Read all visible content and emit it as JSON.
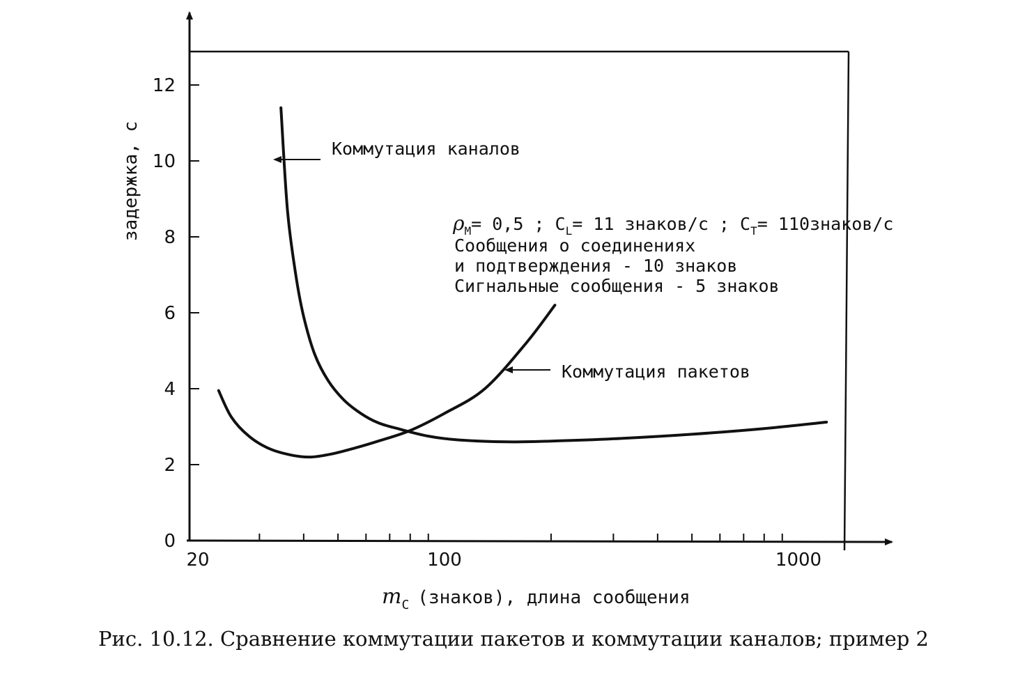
{
  "chart_data": {
    "type": "line",
    "xscale": "log",
    "xlim": [
      20,
      1300
    ],
    "ylim": [
      0,
      12.6
    ],
    "x_ticks": [
      20,
      100,
      1000
    ],
    "x_tick_labels": [
      "20",
      "100",
      "1000"
    ],
    "y_ticks": [
      0,
      2,
      4,
      6,
      8,
      10,
      12
    ],
    "y_tick_labels": [
      "0",
      "2",
      "4",
      "6",
      "8",
      "10",
      "12"
    ],
    "xlabel": {
      "sym": "m",
      "sub": "C",
      "text": "(знаков), длина сообщения"
    },
    "ylabel": "задержка, с",
    "series": [
      {
        "name": "Коммутация каналов",
        "x": [
          34.5,
          36,
          38,
          40,
          43,
          47,
          52,
          58,
          65,
          75,
          90,
          110,
          150,
          200,
          300,
          500,
          800,
          1200
        ],
        "y": [
          11.4,
          8.7,
          7.0,
          5.9,
          4.9,
          4.2,
          3.7,
          3.35,
          3.1,
          2.93,
          2.75,
          2.65,
          2.6,
          2.62,
          2.68,
          2.8,
          2.95,
          3.12
        ]
      },
      {
        "name": "Коммутация пакетов",
        "x": [
          23,
          25,
          28,
          32,
          37,
          42,
          48,
          55,
          65,
          80,
          100,
          130,
          170,
          205
        ],
        "y": [
          3.95,
          3.25,
          2.75,
          2.42,
          2.25,
          2.2,
          2.28,
          2.42,
          2.62,
          2.9,
          3.35,
          4.0,
          5.2,
          6.2
        ]
      }
    ],
    "annotations": {
      "channel": "Коммутация каналов",
      "packet": "Коммутация пакетов",
      "params": "= 0,5 ;  C",
      "params_rho": "ρ",
      "params_rho_sub": "M",
      "params_cl_sub": "L",
      "params_mid": "= 11 знаков/с ;  C",
      "params_ct_sub": "T",
      "params_end": "= 110знаков/с",
      "line2": "Сообщения о соединениях",
      "line3": "и подтверждения  - 10 знаков",
      "line4": "Сигнальные сообщения - 5 знаков"
    },
    "caption": "Рис. 10.12. Сравнение коммутации пакетов и коммутации каналов; пример 2"
  }
}
